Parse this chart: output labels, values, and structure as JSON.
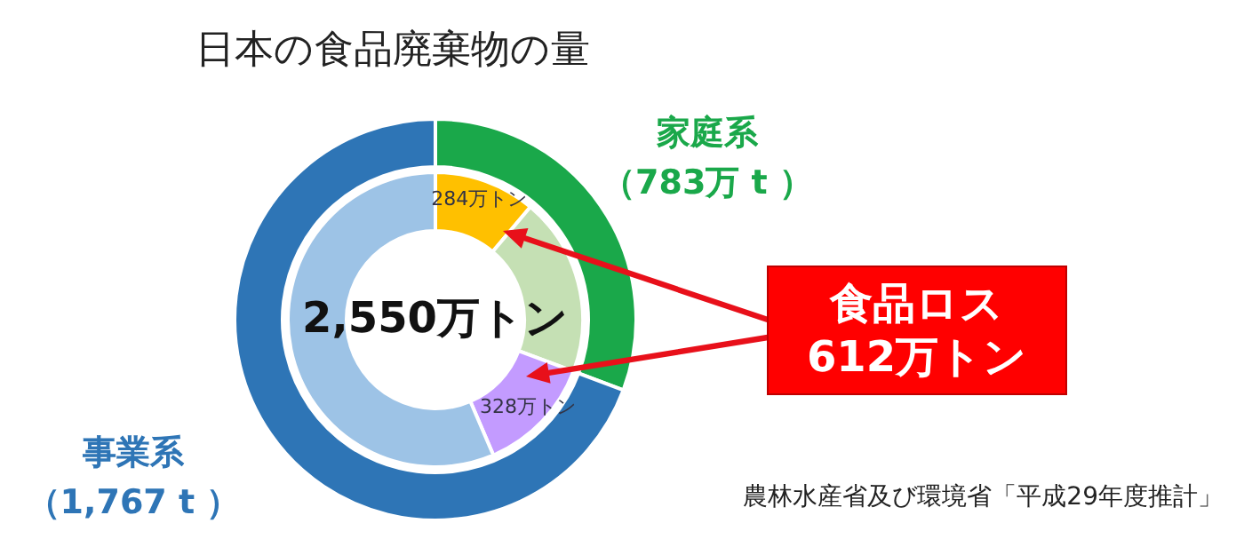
{
  "chart_data": {
    "type": "donut",
    "title": "日本の食品廃棄物の量",
    "legend": false,
    "series": [
      {
        "values": [
          783,
          1767
        ],
        "colors": [
          "#1aa84a",
          "#2e75b6"
        ],
        "value_labels": [
          "家庭系（783万 t ）",
          "事業系（1,767 t ）"
        ]
      },
      {
        "values": [
          284,
          499,
          328,
          1439
        ],
        "colors": [
          "#ffc000",
          "#c5e0b4",
          "#c39bff",
          "#9dc3e6"
        ],
        "value_labels": [
          "284万トン",
          null,
          "328万トン",
          null
        ]
      }
    ],
    "annotations": [
      "2,550万トン",
      "食品ロス\n612万トン",
      "農林水産省及び環境省「平成29年度推計」"
    ]
  }
}
